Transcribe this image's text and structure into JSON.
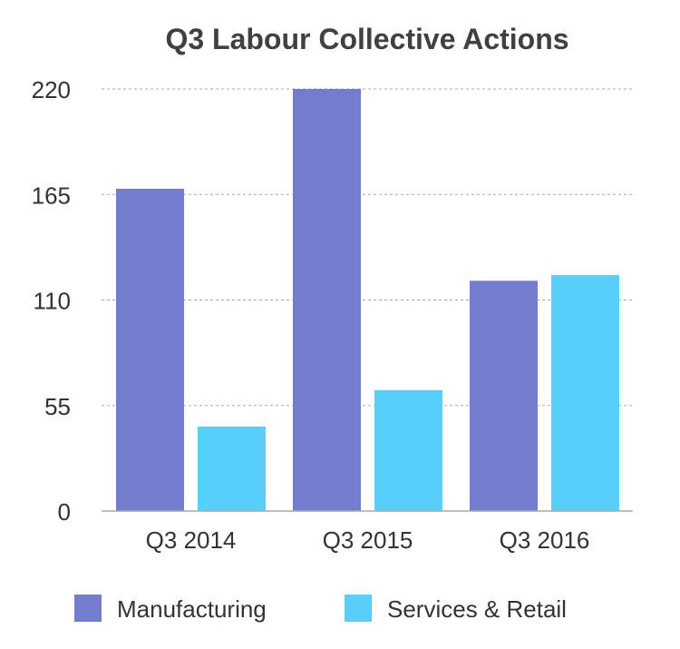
{
  "chart_data": {
    "type": "bar",
    "title": "Q3 Labour Collective Actions",
    "categories": [
      "Q3 2014",
      "Q3 2015",
      "Q3 2016"
    ],
    "series": [
      {
        "name": "Manufacturing",
        "values": [
          168,
          220,
          120
        ],
        "color": "#727dcd"
      },
      {
        "name": "Services & Retail",
        "values": [
          44,
          63,
          123
        ],
        "color": "#56d0fb"
      }
    ],
    "ylim": [
      0,
      220
    ],
    "yticks": [
      "0",
      "55",
      "110",
      "165",
      "220"
    ],
    "ytick_values": [
      0,
      55,
      110,
      165,
      220
    ],
    "grid": true,
    "legend_position": "bottom"
  }
}
